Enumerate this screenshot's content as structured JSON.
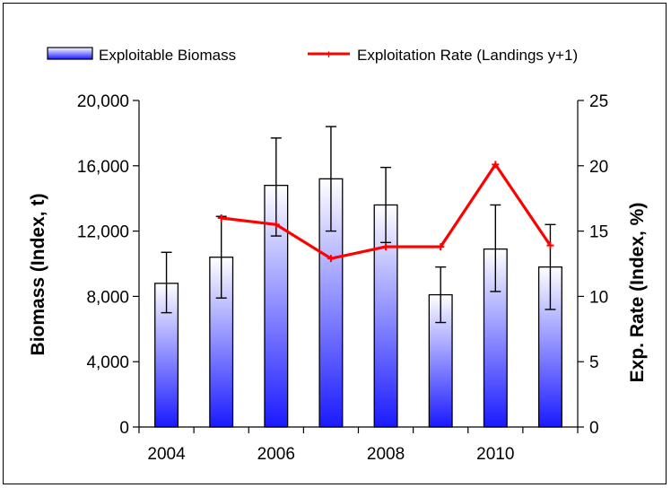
{
  "chart_data": {
    "type": "bar",
    "x": [
      2004,
      2005,
      2006,
      2007,
      2008,
      2009,
      2010,
      2011
    ],
    "xtick_labels": [
      "2004",
      "2006",
      "2008",
      "2010"
    ],
    "xtick_positions": [
      2004,
      2006,
      2008,
      2010
    ],
    "xlim": [
      2003.5,
      2011.5
    ],
    "series": [
      {
        "name": "Exploitable Biomass",
        "kind": "bar",
        "axis": "left",
        "values": [
          8800,
          10400,
          14800,
          15200,
          13600,
          8100,
          10900,
          9800
        ],
        "error_low": [
          7000,
          7900,
          11700,
          12000,
          11300,
          6400,
          8300,
          7200
        ],
        "error_high": [
          10700,
          12900,
          17700,
          18400,
          15900,
          9800,
          13600,
          12400
        ],
        "color_top": "#ffffff",
        "color_bottom": "#1a1aff"
      },
      {
        "name": "Exploitation Rate (Landings y+1)",
        "kind": "line",
        "axis": "right",
        "x": [
          2005,
          2006,
          2007,
          2008,
          2009,
          2010,
          2011
        ],
        "values": [
          16,
          15.5,
          12.9,
          13.8,
          13.8,
          20.1,
          13.9
        ],
        "color": "#ff0000"
      }
    ],
    "ylabel": "Biomass (Index, t)",
    "ylim": [
      0,
      20000
    ],
    "yticks": [
      0,
      4000,
      8000,
      12000,
      16000,
      20000
    ],
    "ytick_labels": [
      "0",
      "4,000",
      "8,000",
      "12,000",
      "16,000",
      "20,000"
    ],
    "y2label": "Exp. Rate (Index, %)",
    "y2lim": [
      0,
      25
    ],
    "y2ticks": [
      0,
      5,
      10,
      15,
      20,
      25
    ],
    "y2tick_labels": [
      "0",
      "5",
      "10",
      "15",
      "20",
      "25"
    ],
    "grid": false,
    "legend_position": "top"
  }
}
